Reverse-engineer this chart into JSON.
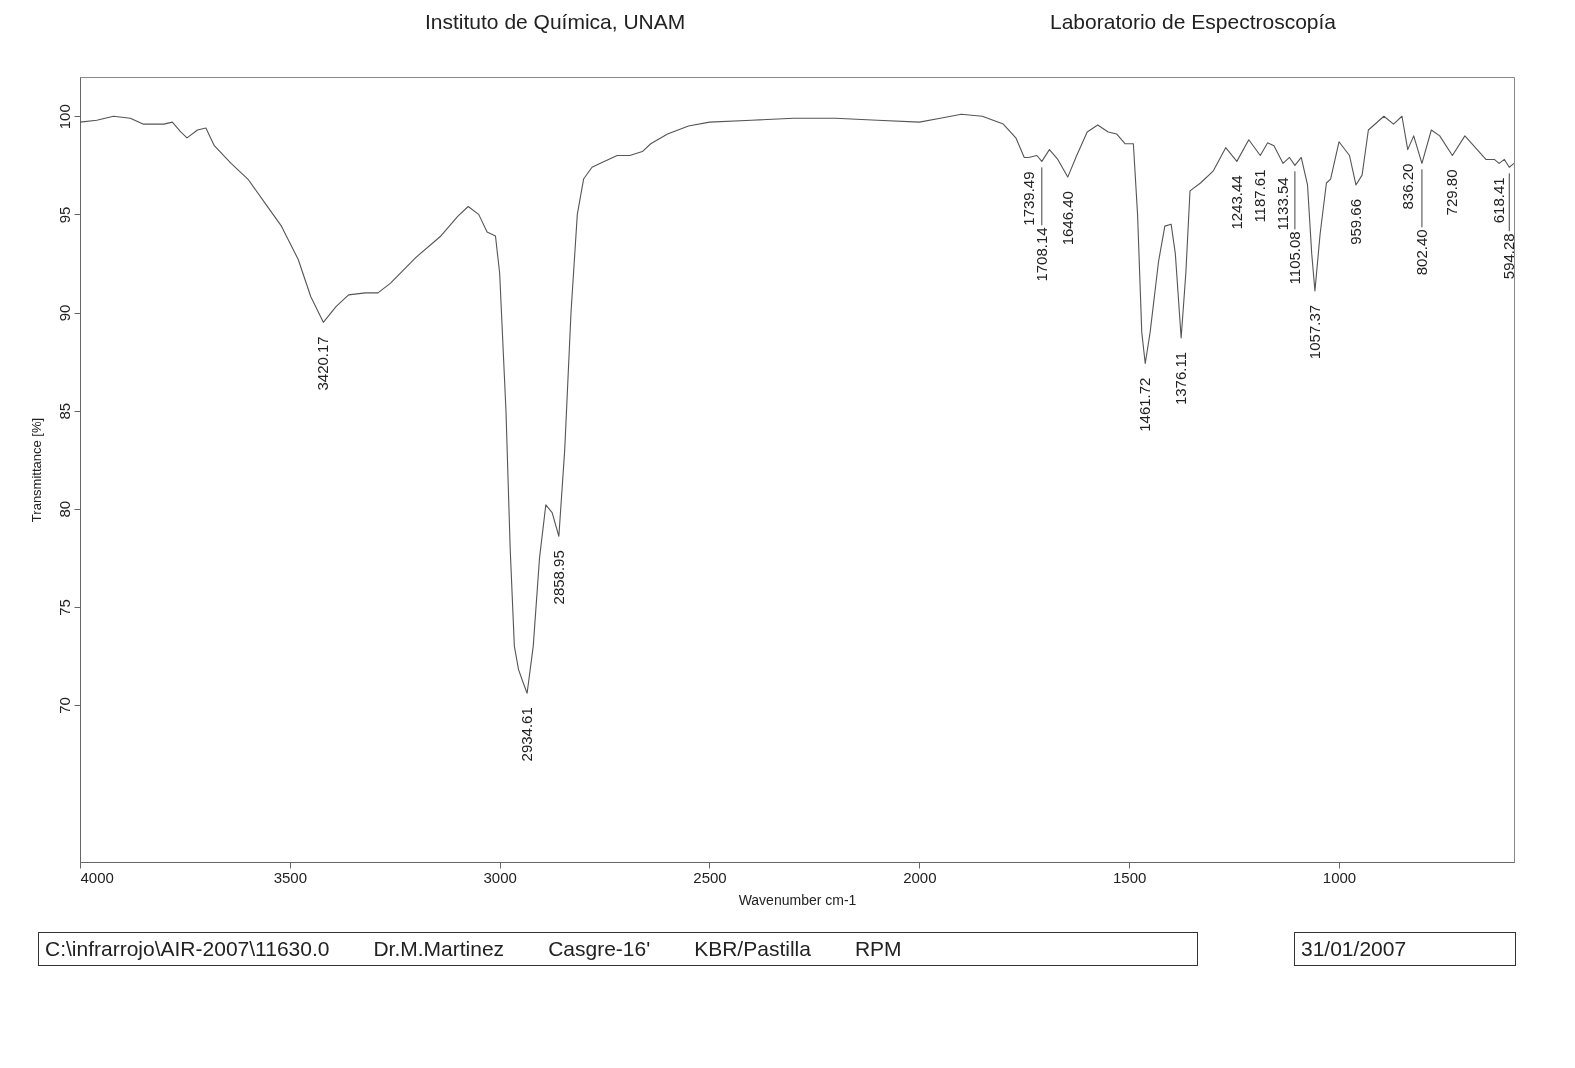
{
  "chart_data": {
    "type": "line",
    "title": "Instituto de Química, UNAM",
    "subtitle": "Laboratorio de Espectroscopía",
    "xlabel": "Wavenumber cm-1",
    "ylabel": "Transmittance [%]",
    "xlim": [
      4000,
      583
    ],
    "ylim": [
      62,
      102
    ],
    "xticks": [
      4000,
      3500,
      3000,
      2500,
      2000,
      1500,
      1000
    ],
    "yticks": [
      70,
      75,
      80,
      85,
      90,
      95,
      100
    ],
    "grid": false,
    "marker": "none",
    "line_style": "solid",
    "series": [
      {
        "color": "#555555",
        "x": [
          4000,
          3960,
          3920,
          3880,
          3850,
          3800,
          3780,
          3760,
          3745,
          3720,
          3700,
          3680,
          3640,
          3600,
          3560,
          3520,
          3480,
          3450,
          3420.17,
          3390,
          3360,
          3320,
          3290,
          3260,
          3200,
          3140,
          3100,
          3075,
          3050,
          3030,
          3010,
          3000,
          2985,
          2975,
          2965,
          2955,
          2945,
          2934.61,
          2920,
          2905,
          2890,
          2875,
          2858.95,
          2845,
          2830,
          2815,
          2800,
          2780,
          2760,
          2720,
          2690,
          2660,
          2640,
          2600,
          2550,
          2500,
          2400,
          2300,
          2200,
          2100,
          2000,
          1950,
          1900,
          1850,
          1800,
          1770,
          1750,
          1739.49,
          1720,
          1708.14,
          1690,
          1670,
          1646.4,
          1625,
          1600,
          1575,
          1550,
          1530,
          1510,
          1490,
          1480,
          1470,
          1461.72,
          1450,
          1430,
          1415,
          1400,
          1390,
          1376.11,
          1365,
          1355,
          1330,
          1300,
          1270,
          1243.44,
          1215,
          1187.61,
          1170,
          1155,
          1133.54,
          1118,
          1105.08,
          1090,
          1075,
          1065,
          1057.37,
          1045,
          1030,
          1020,
          1000,
          975,
          959.66,
          945,
          930,
          893,
          870,
          850,
          836.2,
          822,
          802.4,
          780,
          760,
          729.8,
          700,
          650,
          630,
          618.41,
          606,
          594.28,
          583
        ],
        "values": [
          99.7,
          99.8,
          100.0,
          99.9,
          99.6,
          99.6,
          99.7,
          99.2,
          98.9,
          99.3,
          99.4,
          98.5,
          97.6,
          96.8,
          95.6,
          94.4,
          92.7,
          90.8,
          89.5,
          90.3,
          90.9,
          91.0,
          91.0,
          91.5,
          92.8,
          93.9,
          94.9,
          95.4,
          95.0,
          94.1,
          93.9,
          92.0,
          85.0,
          78.0,
          73.0,
          71.8,
          71.2,
          70.6,
          73.0,
          77.5,
          80.2,
          79.8,
          78.6,
          83.0,
          90.0,
          95.0,
          96.8,
          97.4,
          97.6,
          98.0,
          98.0,
          98.2,
          98.6,
          99.1,
          99.5,
          99.7,
          99.8,
          99.9,
          99.9,
          99.8,
          99.7,
          99.9,
          100.1,
          100.0,
          99.6,
          98.9,
          97.9,
          97.9,
          98.0,
          97.7,
          98.3,
          97.8,
          96.9,
          98.0,
          99.2,
          99.55,
          99.2,
          99.1,
          98.6,
          98.6,
          95.0,
          89.0,
          87.4,
          89.0,
          92.6,
          94.4,
          94.5,
          93.0,
          88.7,
          92.0,
          96.2,
          96.6,
          97.2,
          98.4,
          97.7,
          98.8,
          98.0,
          98.65,
          98.5,
          97.6,
          97.9,
          97.5,
          97.9,
          96.5,
          93.0,
          91.1,
          94.0,
          96.6,
          96.8,
          98.7,
          98.0,
          96.5,
          97.0,
          99.3,
          100.0,
          99.6,
          100.0,
          98.3,
          99.0,
          97.6,
          99.3,
          99.0,
          98.0,
          99.0,
          97.8,
          97.8,
          97.6,
          97.8,
          97.4,
          97.6
        ]
      }
    ],
    "annotations": [
      {
        "text": "3420.17",
        "x": 3420.17,
        "y": 89.5
      },
      {
        "text": "2934.61",
        "x": 2934.61,
        "y": 70.6
      },
      {
        "text": "2858.95",
        "x": 2858.95,
        "y": 78.6
      },
      {
        "text": "1739.49",
        "x": 1739.49,
        "y": 97.9
      },
      {
        "text": "1708.14",
        "x": 1708.14,
        "y": 97.7
      },
      {
        "text": "1646.40",
        "x": 1646.4,
        "y": 96.9
      },
      {
        "text": "1461.72",
        "x": 1461.72,
        "y": 87.4
      },
      {
        "text": "1376.11",
        "x": 1376.11,
        "y": 88.7
      },
      {
        "text": "1243.44",
        "x": 1243.44,
        "y": 97.7
      },
      {
        "text": "1187.61",
        "x": 1187.61,
        "y": 98.0
      },
      {
        "text": "1133.54",
        "x": 1133.54,
        "y": 97.6
      },
      {
        "text": "1105.08",
        "x": 1105.08,
        "y": 97.5
      },
      {
        "text": "1057.37",
        "x": 1057.37,
        "y": 91.1
      },
      {
        "text": "959.66",
        "x": 959.66,
        "y": 96.5
      },
      {
        "text": "836.20",
        "x": 836.2,
        "y": 98.3
      },
      {
        "text": "802.40",
        "x": 802.4,
        "y": 97.6
      },
      {
        "text": "729.80",
        "x": 729.8,
        "y": 98.0
      },
      {
        "text": "618.41",
        "x": 618.41,
        "y": 97.6
      },
      {
        "text": "594.28",
        "x": 594.28,
        "y": 97.4
      },
      "C:\\infrarrojo\\AIR-2007\\11630.0",
      "Dr.M.Martinez",
      "Casgre-16'",
      "KBR/Pastilla",
      "RPM",
      "31/01/2007"
    ]
  }
}
